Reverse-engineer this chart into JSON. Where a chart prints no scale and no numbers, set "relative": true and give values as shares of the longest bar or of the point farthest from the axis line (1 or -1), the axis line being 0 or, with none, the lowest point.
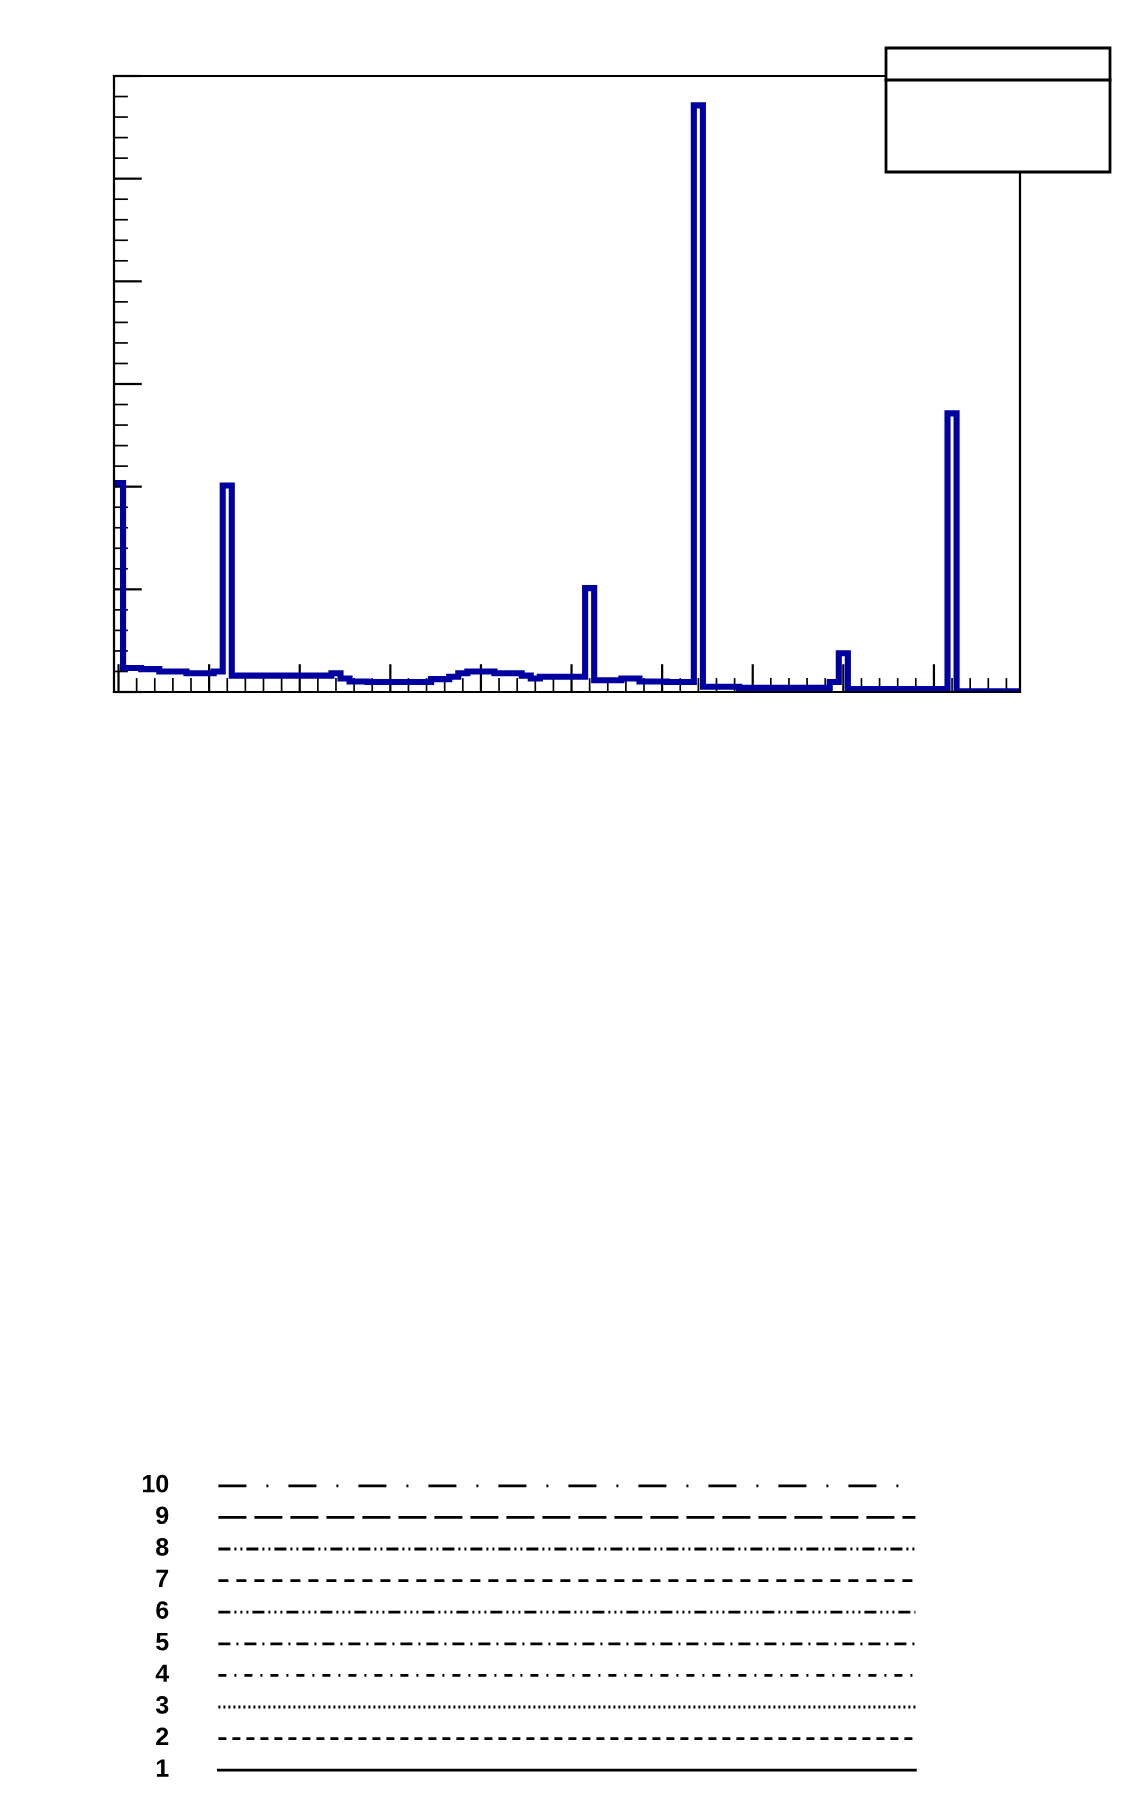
{
  "chart_data": [
    {
      "type": "step",
      "relative": true,
      "color": "#0000a0",
      "tick_labels": false,
      "grid": false,
      "legend": false,
      "categories": [
        null,
        null,
        null,
        null,
        null,
        null,
        null,
        null,
        null,
        null,
        null,
        null,
        null,
        null,
        null,
        null,
        null,
        null,
        null,
        null,
        null,
        null,
        null,
        null,
        null,
        null,
        null,
        null,
        null,
        null,
        null,
        null,
        null,
        null,
        null,
        null,
        null,
        null,
        null,
        null,
        null,
        null,
        null,
        null,
        null,
        null,
        null,
        null,
        null,
        null,
        null,
        null,
        null,
        null,
        null,
        null,
        null,
        null,
        null,
        null,
        null,
        null,
        null,
        null,
        null,
        null,
        null,
        null,
        null,
        null,
        null,
        null,
        null,
        null,
        null,
        null,
        null,
        null,
        null,
        null,
        null,
        null,
        null,
        null,
        null,
        null,
        null,
        null,
        null,
        null,
        null,
        null,
        null,
        null,
        null,
        null,
        null,
        null,
        null,
        null
      ],
      "values": [
        0.356,
        0.041,
        0.041,
        0.039,
        0.039,
        0.035,
        0.035,
        0.035,
        0.032,
        0.032,
        0.032,
        0.035,
        0.352,
        0.028,
        0.028,
        0.028,
        0.028,
        0.028,
        0.028,
        0.028,
        0.028,
        0.028,
        0.028,
        0.028,
        0.032,
        0.023,
        0.018,
        0.018,
        0.017,
        0.017,
        0.017,
        0.017,
        0.017,
        0.017,
        0.017,
        0.022,
        0.022,
        0.026,
        0.032,
        0.035,
        0.035,
        0.035,
        0.032,
        0.032,
        0.032,
        0.028,
        0.023,
        0.026,
        0.026,
        0.026,
        0.026,
        0.026,
        0.177,
        0.02,
        0.02,
        0.02,
        0.023,
        0.023,
        0.018,
        0.018,
        0.018,
        0.017,
        0.017,
        0.017,
        1.0,
        0.009,
        0.009,
        0.009,
        0.009,
        0.007,
        0.007,
        0.007,
        0.007,
        0.007,
        0.007,
        0.007,
        0.007,
        0.007,
        0.007,
        0.017,
        0.066,
        0.005,
        0.005,
        0.005,
        0.005,
        0.005,
        0.005,
        0.005,
        0.005,
        0.005,
        0.005,
        0.005,
        0.475,
        0.001,
        0.001,
        0.001,
        0.001,
        0.001,
        0.001,
        0.001
      ],
      "annotations": [
        "10",
        "9",
        "8",
        "7",
        "6",
        "5",
        "4",
        "3",
        "2",
        "1"
      ]
    }
  ]
}
